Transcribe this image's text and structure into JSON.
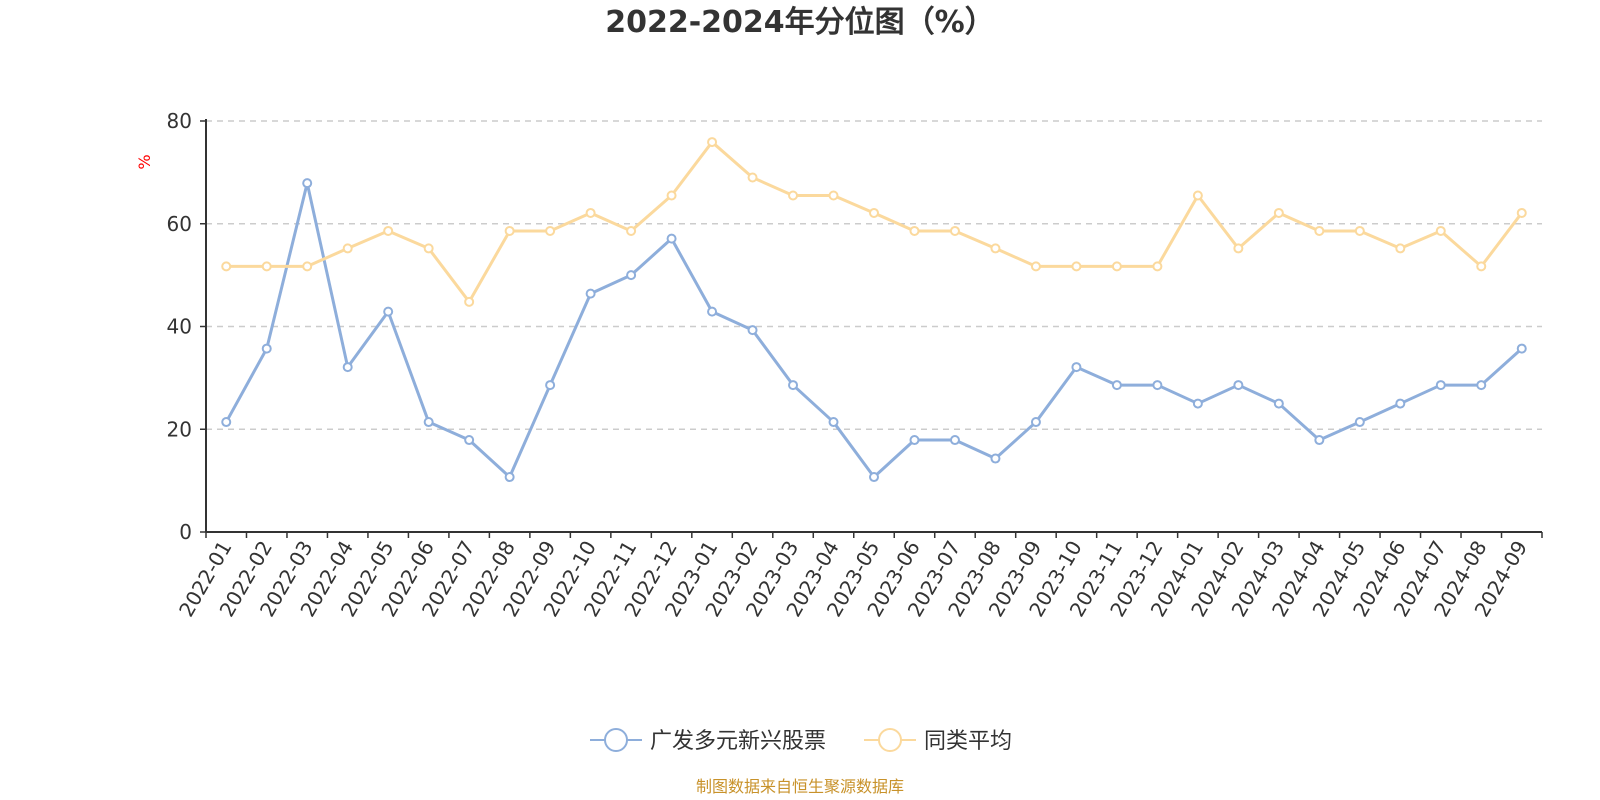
{
  "title": "2022-2024年分位图（%）",
  "source_note": "制图数据来自恒生聚源数据库",
  "chart_data": {
    "type": "line",
    "title": "2022-2024年分位图（%）",
    "ylabel": "%",
    "xlabel": "",
    "ylim": [
      0,
      80
    ],
    "yticks": [
      0,
      20,
      40,
      60,
      80
    ],
    "grid": true,
    "legend_position": "bottom",
    "categories": [
      "2022-01",
      "2022-02",
      "2022-03",
      "2022-04",
      "2022-05",
      "2022-06",
      "2022-07",
      "2022-08",
      "2022-09",
      "2022-10",
      "2022-11",
      "2022-12",
      "2023-01",
      "2023-02",
      "2023-03",
      "2023-04",
      "2023-05",
      "2023-06",
      "2023-07",
      "2023-08",
      "2023-09",
      "2023-10",
      "2023-11",
      "2023-12",
      "2024-01",
      "2024-02",
      "2024-03",
      "2024-04",
      "2024-05",
      "2024-06",
      "2024-07",
      "2024-08",
      "2024-09"
    ],
    "series": [
      {
        "name": "广发多元新兴股票",
        "color": "#8eaedb",
        "values": [
          21.4,
          35.7,
          67.9,
          32.1,
          42.9,
          21.4,
          17.9,
          10.7,
          28.6,
          46.4,
          50.0,
          57.1,
          42.9,
          39.3,
          28.6,
          21.4,
          10.7,
          17.9,
          17.9,
          14.3,
          21.4,
          32.1,
          28.6,
          28.6,
          25.0,
          28.6,
          25.0,
          17.9,
          21.4,
          25.0,
          28.6,
          28.6,
          35.7
        ]
      },
      {
        "name": "同类平均",
        "color": "#fbd99d",
        "values": [
          51.7,
          51.7,
          51.7,
          55.2,
          58.6,
          55.2,
          44.8,
          58.6,
          58.6,
          62.1,
          58.6,
          65.5,
          75.9,
          69.0,
          65.5,
          65.5,
          62.1,
          58.6,
          58.6,
          55.2,
          51.7,
          51.7,
          51.7,
          51.7,
          65.5,
          55.2,
          62.1,
          58.6,
          58.6,
          55.2,
          58.6,
          51.7,
          62.1
        ]
      }
    ]
  }
}
